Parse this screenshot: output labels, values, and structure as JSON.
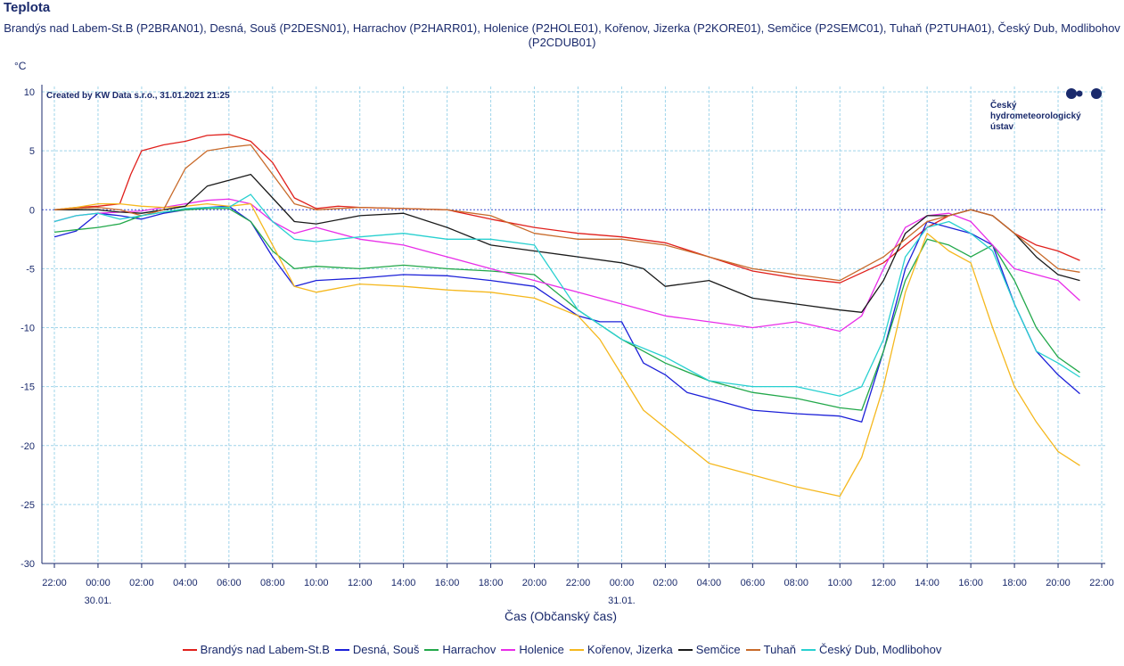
{
  "chart_data": {
    "type": "line",
    "title": "Teplota",
    "subtitle": "Brandýs nad Labem-St.B (P2BRAN01), Desná, Souš (P2DESN01), Harrachov (P2HARR01), Holenice (P2HOLE01), Kořenov, Jizerka (P2KORE01), Semčice (P2SEMC01), Tuhaň (P2TUHA01), Český Dub, Modlibohov (P2CDUB01)",
    "ylabel": "°C",
    "xlabel": "Čas (Občanský čas)",
    "credit": "Created by KW Data s.r.o., 31.01.2021 21:25",
    "logo_text": [
      "Český",
      "hydrometeorologický",
      "ústav"
    ],
    "ylim": [
      -30,
      10
    ],
    "yticks": [
      10,
      5,
      0,
      -5,
      -10,
      -15,
      -20,
      -25,
      -30
    ],
    "xlim_hours": [
      -3,
      46
    ],
    "xticks": [
      "22:00",
      "00:00",
      "02:00",
      "04:00",
      "06:00",
      "08:00",
      "10:00",
      "12:00",
      "14:00",
      "16:00",
      "18:00",
      "20:00",
      "22:00",
      "00:00",
      "02:00",
      "04:00",
      "06:00",
      "08:00",
      "10:00",
      "12:00",
      "14:00",
      "16:00",
      "18:00",
      "20:00",
      "22:00"
    ],
    "date_labels": [
      {
        "after_tick": "00:00",
        "index": 1,
        "text": "30.01."
      },
      {
        "after_tick": "00:00",
        "index": 13,
        "text": "31.01."
      }
    ],
    "grid": true,
    "legend_position": "bottom",
    "x_unit_note": "x values are hours relative to 30.01. 00:00",
    "series": [
      {
        "name": "Brandýs nad Labem-St.B",
        "color": "#e0201c",
        "x": [
          -2,
          -1,
          0,
          1,
          1.5,
          2,
          3,
          4,
          5,
          6,
          7,
          8,
          9,
          10,
          11,
          12,
          14,
          16,
          18,
          20,
          22,
          24,
          26,
          28,
          30,
          32,
          34,
          36,
          38,
          39,
          40,
          41,
          42,
          43,
          44,
          45
        ],
        "y": [
          0,
          0.2,
          0.3,
          0.5,
          3,
          5,
          5.5,
          5.8,
          6.3,
          6.4,
          5.8,
          4,
          1,
          0.1,
          0.3,
          0.2,
          0.1,
          0,
          -0.8,
          -1.5,
          -2,
          -2.3,
          -2.8,
          -4,
          -5.2,
          -5.8,
          -6.2,
          -4.5,
          -1.5,
          -0.5,
          0,
          -0.5,
          -2,
          -3,
          -3.5,
          -4.3
        ]
      },
      {
        "name": "Desná, Souš",
        "color": "#1c20d8",
        "x": [
          -2,
          -1,
          0,
          1,
          2,
          3,
          4,
          5,
          6,
          7,
          8,
          9,
          10,
          12,
          14,
          16,
          18,
          20,
          22,
          23,
          24,
          25,
          26,
          27,
          28,
          30,
          32,
          34,
          35,
          36,
          37,
          38,
          39,
          40,
          41,
          42,
          43,
          44,
          45
        ],
        "y": [
          -2.3,
          -1.8,
          -0.3,
          -0.5,
          -0.8,
          -0.3,
          0,
          0.2,
          0.3,
          -1,
          -4,
          -6.5,
          -6,
          -5.8,
          -5.5,
          -5.6,
          -6,
          -6.5,
          -9,
          -9.5,
          -9.5,
          -13,
          -14,
          -15.5,
          -16,
          -17,
          -17.3,
          -17.5,
          -18,
          -12,
          -5,
          -1,
          -1.5,
          -2,
          -3,
          -8,
          -12,
          -14,
          -15.6
        ]
      },
      {
        "name": "Harrachov",
        "color": "#22a84a",
        "x": [
          -2,
          -1,
          0,
          1,
          2,
          3,
          4,
          5,
          6,
          7,
          8,
          9,
          10,
          12,
          14,
          16,
          18,
          20,
          22,
          24,
          26,
          28,
          30,
          32,
          34,
          35,
          36,
          37,
          38,
          39,
          40,
          41,
          42,
          43,
          44,
          45
        ],
        "y": [
          -1.9,
          -1.7,
          -1.5,
          -1.2,
          -0.5,
          -0.2,
          0,
          0.1,
          0.1,
          -1,
          -3.5,
          -5,
          -4.8,
          -5,
          -4.7,
          -5,
          -5.2,
          -5.5,
          -8.5,
          -11,
          -13,
          -14.5,
          -15.5,
          -16,
          -16.8,
          -17,
          -12,
          -6,
          -2.5,
          -3,
          -4,
          -3,
          -6,
          -10,
          -12.5,
          -13.8
        ]
      },
      {
        "name": "Holenice",
        "color": "#e82de8",
        "x": [
          -2,
          -1,
          0,
          1,
          2,
          3,
          4,
          5,
          6,
          7,
          8,
          9,
          10,
          12,
          14,
          16,
          18,
          20,
          22,
          24,
          26,
          28,
          30,
          32,
          34,
          35,
          36,
          37,
          38,
          39,
          40,
          41,
          42,
          43,
          44,
          45
        ],
        "y": [
          -1,
          -0.5,
          -0.3,
          -0.2,
          -0.1,
          0.2,
          0.5,
          0.8,
          0.9,
          0.5,
          -1,
          -2,
          -1.5,
          -2.5,
          -3,
          -4,
          -5,
          -6,
          -7,
          -8,
          -9,
          -9.5,
          -10,
          -9.5,
          -10.3,
          -9,
          -5,
          -1.5,
          -0.5,
          -0.3,
          -1,
          -3,
          -5,
          -5.5,
          -6,
          -7.7
        ]
      },
      {
        "name": "Kořenov, Jizerka",
        "color": "#f5b81e",
        "x": [
          -2,
          -1,
          0,
          1,
          2,
          3,
          4,
          5,
          6,
          7,
          8,
          9,
          10,
          12,
          14,
          16,
          18,
          20,
          22,
          23,
          24,
          25,
          26,
          28,
          30,
          32,
          34,
          35,
          36,
          37,
          38,
          39,
          40,
          41,
          42,
          43,
          44,
          45
        ],
        "y": [
          0,
          0.2,
          0.5,
          0.5,
          0.3,
          0.2,
          0.3,
          0.5,
          0.3,
          0.5,
          -3,
          -6.5,
          -7,
          -6.3,
          -6.5,
          -6.8,
          -7,
          -7.5,
          -9,
          -11,
          -14,
          -17,
          -18.5,
          -21.5,
          -22.5,
          -23.5,
          -24.3,
          -21,
          -15,
          -7,
          -2,
          -3.5,
          -4.5,
          -10,
          -15,
          -18,
          -20.5,
          -21.7
        ]
      },
      {
        "name": "Semčice",
        "color": "#1a1a1a",
        "x": [
          -2,
          -1,
          0,
          1,
          2,
          3,
          4,
          5,
          6,
          7,
          8,
          9,
          10,
          12,
          14,
          16,
          18,
          20,
          22,
          24,
          25,
          26,
          28,
          30,
          32,
          34,
          35,
          36,
          37,
          38,
          39,
          40,
          41,
          42,
          43,
          44,
          45
        ],
        "y": [
          0,
          0,
          0,
          -0.2,
          -0.3,
          0,
          0.3,
          2,
          2.5,
          3,
          1,
          -1,
          -1.2,
          -0.5,
          -0.3,
          -1.5,
          -3,
          -3.5,
          -4,
          -4.5,
          -5,
          -6.5,
          -6,
          -7.5,
          -8,
          -8.5,
          -8.7,
          -6,
          -2,
          -0.5,
          -0.5,
          0,
          -0.5,
          -2,
          -4,
          -5.5,
          -6
        ]
      },
      {
        "name": "Tuhaň",
        "color": "#c86a2a",
        "x": [
          -2,
          -1,
          0,
          1,
          2,
          3,
          4,
          5,
          6,
          7,
          8,
          9,
          10,
          12,
          14,
          16,
          18,
          20,
          22,
          24,
          26,
          28,
          30,
          32,
          34,
          36,
          38,
          40,
          41,
          42,
          43,
          44,
          45
        ],
        "y": [
          0,
          0.1,
          0.2,
          0,
          -0.5,
          0,
          3.5,
          5,
          5.3,
          5.5,
          3,
          0.5,
          0,
          0.2,
          0.1,
          0,
          -0.5,
          -2,
          -2.5,
          -2.5,
          -3,
          -4,
          -5,
          -5.5,
          -6,
          -4,
          -1,
          0,
          -0.5,
          -2,
          -3.5,
          -5,
          -5.3
        ]
      },
      {
        "name": "Český Dub, Modlibohov",
        "color": "#28d0d0",
        "x": [
          -2,
          -1,
          0,
          1,
          2,
          3,
          4,
          5,
          6,
          7,
          8,
          9,
          10,
          12,
          14,
          16,
          18,
          20,
          22,
          24,
          26,
          28,
          30,
          32,
          34,
          35,
          36,
          37,
          38,
          39,
          40,
          41,
          42,
          43,
          44,
          45
        ],
        "y": [
          -1,
          -0.5,
          -0.3,
          -0.8,
          -0.5,
          -0.2,
          0.1,
          0.2,
          0.2,
          1.3,
          -1,
          -2.5,
          -2.7,
          -2.3,
          -2,
          -2.5,
          -2.5,
          -3,
          -8.5,
          -11,
          -12.5,
          -14.5,
          -15,
          -15,
          -15.8,
          -15,
          -11,
          -4,
          -1.5,
          -1,
          -2,
          -3.5,
          -8,
          -12,
          -13,
          -14.2
        ]
      }
    ]
  }
}
